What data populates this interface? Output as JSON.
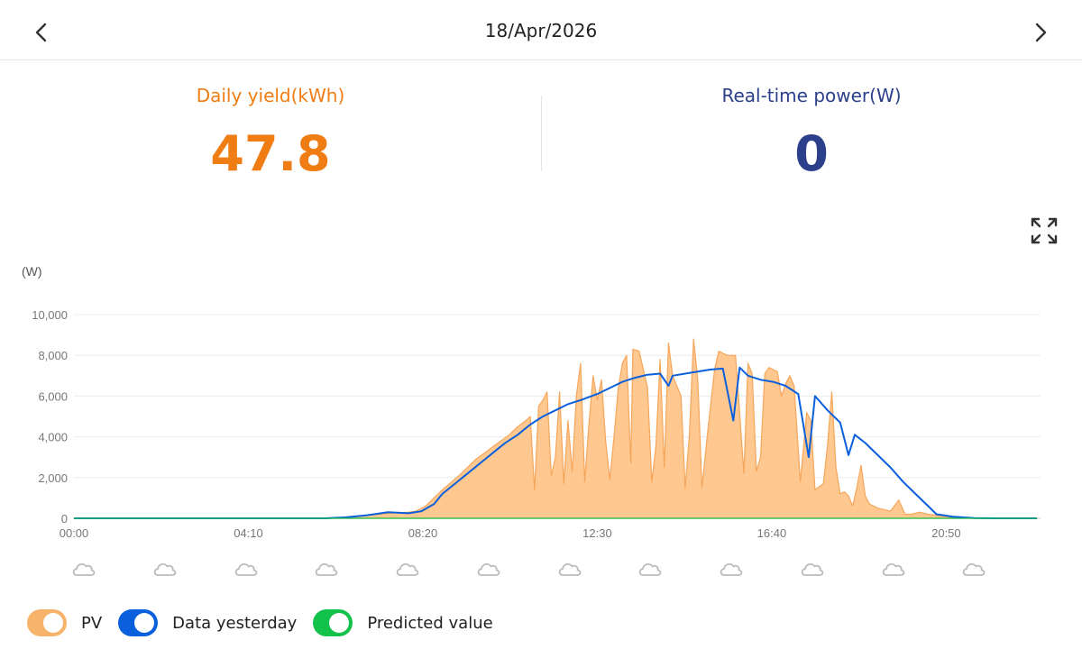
{
  "header": {
    "date": "18/Apr/2026"
  },
  "stats": {
    "daily_yield": {
      "label": "Daily yield(kWh)",
      "value": "47.8"
    },
    "realtime_power": {
      "label": "Real-time power(W)",
      "value": "0"
    }
  },
  "colors": {
    "orange": "#f07d14",
    "orange_fill": "#ffc890",
    "orange_stroke": "#f5a65a",
    "navy": "#2c3f8a",
    "blue": "#0a5fdc",
    "green": "#12c24a",
    "grid": "#ececec",
    "axis_text": "#777777",
    "icon": "#bbbbbb"
  },
  "legend": [
    {
      "label": "PV",
      "color": "#f7b36a"
    },
    {
      "label": "Data yesterday",
      "color": "#0a5fdc"
    },
    {
      "label": "Predicted value",
      "color": "#12c24a"
    }
  ],
  "weather": [
    "cloudy",
    "cloudy",
    "cloudy",
    "cloudy",
    "cloudy",
    "cloudy",
    "cloudy",
    "cloudy",
    "cloudy",
    "cloudy",
    "cloudy",
    "cloudy"
  ],
  "chart_data": {
    "type": "area",
    "ylabel": "(W)",
    "ylim": [
      0,
      10000
    ],
    "yticks": [
      "10,000",
      "8,000",
      "6,000",
      "4,000",
      "2,000",
      "0"
    ],
    "ytick_values": [
      10000,
      8000,
      6000,
      4000,
      2000,
      0
    ],
    "xlim": [
      0,
      23
    ],
    "xticks": [
      "00:00",
      "04:10",
      "08:20",
      "12:30",
      "16:40",
      "20:50"
    ],
    "xtick_values": [
      0,
      4.1667,
      8.3333,
      12.5,
      16.6667,
      20.8333
    ],
    "series": [
      {
        "name": "PV",
        "type": "area",
        "points": [
          [
            0,
            0
          ],
          [
            6.17,
            0
          ],
          [
            6.5,
            50
          ],
          [
            7.0,
            150
          ],
          [
            7.5,
            250
          ],
          [
            8.0,
            300
          ],
          [
            8.17,
            350
          ],
          [
            8.4,
            600
          ],
          [
            8.6,
            1000
          ],
          [
            8.8,
            1400
          ],
          [
            9.0,
            1750
          ],
          [
            9.2,
            2100
          ],
          [
            9.4,
            2500
          ],
          [
            9.6,
            2900
          ],
          [
            9.8,
            3200
          ],
          [
            10.0,
            3500
          ],
          [
            10.2,
            3800
          ],
          [
            10.4,
            4100
          ],
          [
            10.6,
            4500
          ],
          [
            10.8,
            4800
          ],
          [
            10.9,
            5000
          ],
          [
            11.0,
            1400
          ],
          [
            11.1,
            5500
          ],
          [
            11.2,
            5800
          ],
          [
            11.3,
            6200
          ],
          [
            11.4,
            2100
          ],
          [
            11.5,
            3000
          ],
          [
            11.6,
            6200
          ],
          [
            11.7,
            1700
          ],
          [
            11.8,
            4800
          ],
          [
            11.9,
            2300
          ],
          [
            12.0,
            6000
          ],
          [
            12.1,
            7600
          ],
          [
            12.2,
            1800
          ],
          [
            12.3,
            4600
          ],
          [
            12.4,
            7000
          ],
          [
            12.5,
            5800
          ],
          [
            12.6,
            6800
          ],
          [
            12.7,
            3800
          ],
          [
            12.8,
            1900
          ],
          [
            12.9,
            4000
          ],
          [
            13.0,
            6400
          ],
          [
            13.1,
            7600
          ],
          [
            13.2,
            8000
          ],
          [
            13.3,
            2700
          ],
          [
            13.35,
            8300
          ],
          [
            13.5,
            8200
          ],
          [
            13.7,
            6400
          ],
          [
            13.8,
            1800
          ],
          [
            13.9,
            3500
          ],
          [
            14.0,
            7800
          ],
          [
            14.1,
            2500
          ],
          [
            14.2,
            8600
          ],
          [
            14.3,
            7000
          ],
          [
            14.5,
            6000
          ],
          [
            14.6,
            1500
          ],
          [
            14.7,
            4100
          ],
          [
            14.8,
            8800
          ],
          [
            14.9,
            6800
          ],
          [
            15.0,
            1500
          ],
          [
            15.15,
            4500
          ],
          [
            15.3,
            7300
          ],
          [
            15.4,
            8200
          ],
          [
            15.6,
            8000
          ],
          [
            15.8,
            8000
          ],
          [
            15.9,
            5200
          ],
          [
            16.0,
            2200
          ],
          [
            16.1,
            7600
          ],
          [
            16.2,
            7100
          ],
          [
            16.3,
            2300
          ],
          [
            16.4,
            3000
          ],
          [
            16.5,
            7100
          ],
          [
            16.6,
            7400
          ],
          [
            16.8,
            7200
          ],
          [
            16.9,
            6000
          ],
          [
            17.0,
            6600
          ],
          [
            17.1,
            7000
          ],
          [
            17.2,
            6500
          ],
          [
            17.35,
            1800
          ],
          [
            17.45,
            4000
          ],
          [
            17.5,
            5200
          ],
          [
            17.6,
            4800
          ],
          [
            17.7,
            1400
          ],
          [
            17.9,
            1700
          ],
          [
            18.0,
            3600
          ],
          [
            18.1,
            6200
          ],
          [
            18.2,
            2500
          ],
          [
            18.3,
            1200
          ],
          [
            18.4,
            1300
          ],
          [
            18.5,
            1100
          ],
          [
            18.6,
            600
          ],
          [
            18.7,
            1500
          ],
          [
            18.8,
            2600
          ],
          [
            18.9,
            1100
          ],
          [
            19.0,
            700
          ],
          [
            19.2,
            500
          ],
          [
            19.5,
            350
          ],
          [
            19.7,
            900
          ],
          [
            19.85,
            200
          ],
          [
            20.0,
            200
          ],
          [
            20.2,
            300
          ],
          [
            20.4,
            200
          ],
          [
            20.6,
            150
          ],
          [
            20.8,
            80
          ],
          [
            21.0,
            30
          ],
          [
            21.3,
            0
          ],
          [
            23,
            0
          ]
        ]
      },
      {
        "name": "Data yesterday",
        "type": "line",
        "points": [
          [
            0,
            0
          ],
          [
            6.0,
            0
          ],
          [
            6.5,
            50
          ],
          [
            7.0,
            150
          ],
          [
            7.5,
            300
          ],
          [
            8.0,
            250
          ],
          [
            8.3,
            350
          ],
          [
            8.6,
            700
          ],
          [
            8.8,
            1200
          ],
          [
            9.1,
            1700
          ],
          [
            9.4,
            2200
          ],
          [
            9.7,
            2700
          ],
          [
            10.0,
            3200
          ],
          [
            10.3,
            3700
          ],
          [
            10.6,
            4100
          ],
          [
            10.9,
            4600
          ],
          [
            11.2,
            5000
          ],
          [
            11.5,
            5300
          ],
          [
            11.8,
            5600
          ],
          [
            12.1,
            5800
          ],
          [
            12.5,
            6100
          ],
          [
            12.8,
            6400
          ],
          [
            13.1,
            6700
          ],
          [
            13.4,
            6900
          ],
          [
            13.7,
            7050
          ],
          [
            14.0,
            7100
          ],
          [
            14.2,
            6500
          ],
          [
            14.3,
            7000
          ],
          [
            14.6,
            7100
          ],
          [
            14.9,
            7200
          ],
          [
            15.2,
            7300
          ],
          [
            15.5,
            7350
          ],
          [
            15.75,
            4800
          ],
          [
            15.9,
            7400
          ],
          [
            16.1,
            7000
          ],
          [
            16.4,
            6800
          ],
          [
            16.7,
            6700
          ],
          [
            17.0,
            6500
          ],
          [
            17.3,
            6100
          ],
          [
            17.55,
            3000
          ],
          [
            17.7,
            6000
          ],
          [
            18.0,
            5300
          ],
          [
            18.3,
            4700
          ],
          [
            18.5,
            3100
          ],
          [
            18.65,
            4100
          ],
          [
            18.9,
            3700
          ],
          [
            19.2,
            3100
          ],
          [
            19.5,
            2500
          ],
          [
            19.8,
            1800
          ],
          [
            20.1,
            1200
          ],
          [
            20.4,
            600
          ],
          [
            20.6,
            200
          ],
          [
            21.0,
            80
          ],
          [
            21.5,
            10
          ],
          [
            22.0,
            0
          ],
          [
            23,
            0
          ]
        ]
      },
      {
        "name": "Predicted value",
        "type": "line",
        "points": [
          [
            0,
            0
          ],
          [
            23,
            0
          ]
        ]
      }
    ]
  }
}
